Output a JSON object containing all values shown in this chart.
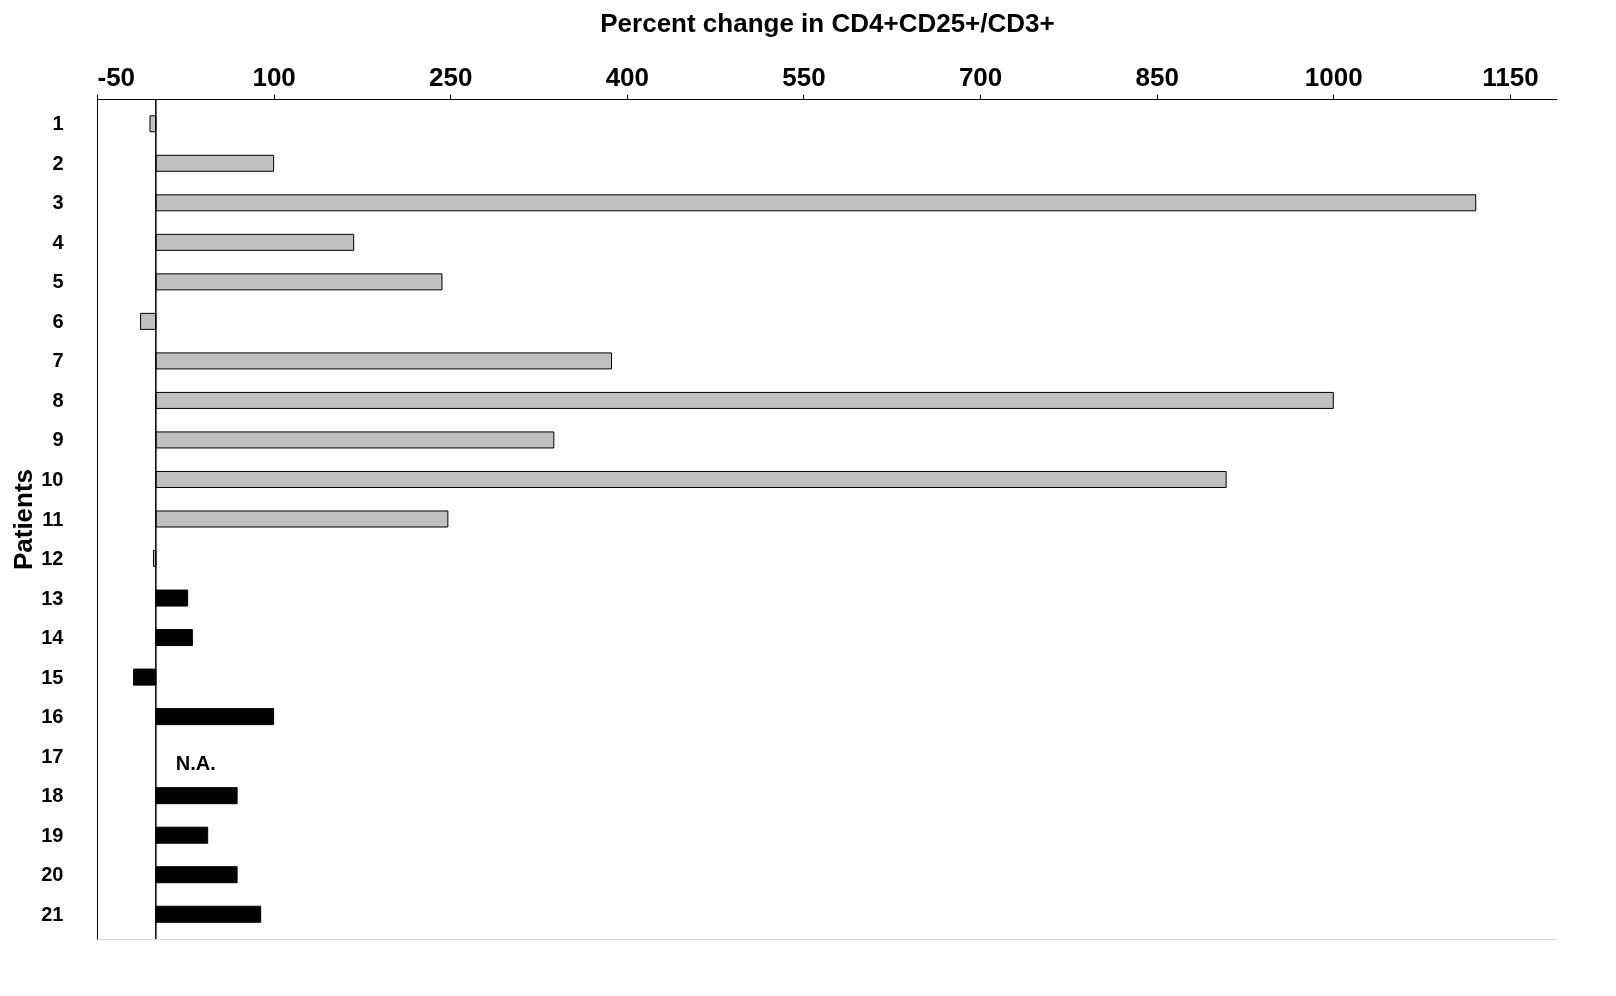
{
  "chart_data": {
    "type": "bar",
    "orientation": "horizontal",
    "xlabel": "Percent change in CD4+CD25+/CD3+",
    "ylabel": "Patients",
    "categories": [
      "1",
      "2",
      "3",
      "4",
      "5",
      "6",
      "7",
      "8",
      "9",
      "10",
      "11",
      "12",
      "13",
      "14",
      "15",
      "16",
      "17",
      "18",
      "19",
      "20",
      "21"
    ],
    "values": [
      -5,
      100,
      1121,
      168,
      243,
      -13,
      387,
      1000,
      338,
      909,
      248,
      -2,
      27,
      31,
      -19,
      100,
      null,
      69,
      44,
      69,
      89
    ],
    "colors": [
      "#c0c0c0",
      "#c0c0c0",
      "#c0c0c0",
      "#c0c0c0",
      "#c0c0c0",
      "#c0c0c0",
      "#c0c0c0",
      "#c0c0c0",
      "#c0c0c0",
      "#c0c0c0",
      "#c0c0c0",
      "#c0c0c0",
      "#000000",
      "#000000",
      "#000000",
      "#000000",
      "#000000",
      "#000000",
      "#000000",
      "#000000",
      "#000000"
    ],
    "xlim": [
      -50,
      1190
    ],
    "xticks": [
      -50,
      100,
      250,
      400,
      550,
      700,
      850,
      1000,
      1150
    ],
    "ref_lines": [
      {
        "axis": "x",
        "value": 0,
        "label": null,
        "color": "#000000"
      }
    ],
    "annotations": [
      {
        "text": "N.A.",
        "x": 0,
        "y": "17"
      }
    ],
    "grid": false
  }
}
